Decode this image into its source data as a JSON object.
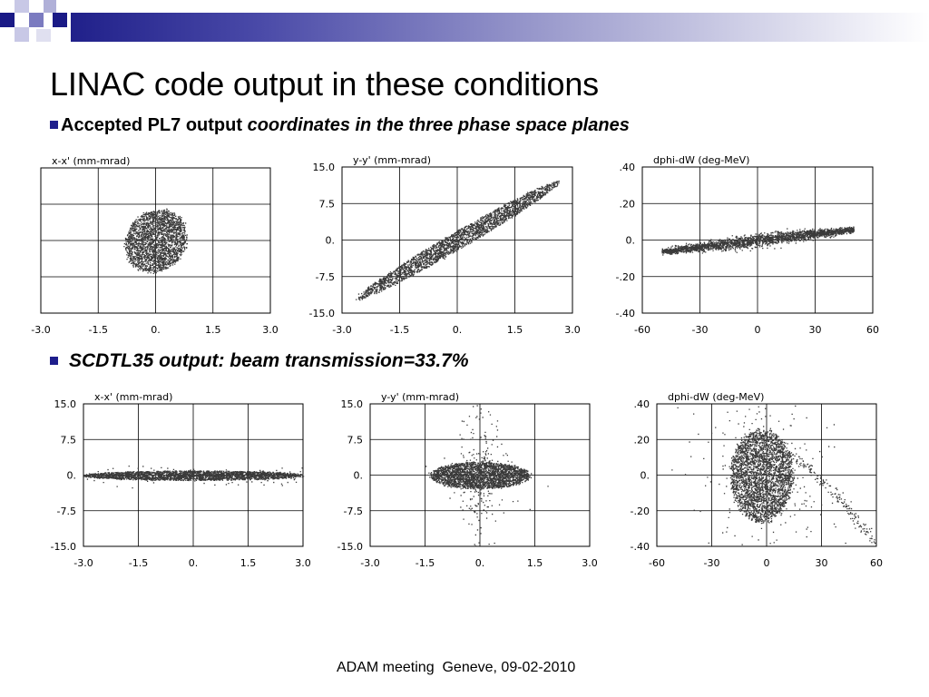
{
  "slide": {
    "title": "LINAC code output in these conditions",
    "bullet1_bold": "Accepted PL7 output ",
    "bullet1_italic": "coordinates in the three phase space planes",
    "bullet2": "SCDTL35 output: beam transmission=33.7%",
    "footer": "ADAM meeting  Geneve, 09-02-2010"
  },
  "colors": {
    "accent": "#1e1e8c",
    "points": "#3a3a3a",
    "grid": "#000000"
  },
  "chart_data": [
    {
      "type": "scatter",
      "title": "x-x' (mm-mrad)",
      "xlim": [
        -3.0,
        3.0
      ],
      "ylim": [
        -15.0,
        15.0
      ],
      "xticks": [
        "-3.0",
        "-1.5",
        "0.",
        "1.5",
        "3.0"
      ],
      "yticks": [
        "",
        "",
        "",
        "",
        ""
      ],
      "grid": true,
      "distribution": {
        "shape": "ellipse",
        "center": [
          0.0,
          0.0
        ],
        "semi_axes": [
          0.8,
          6.5
        ],
        "tilt_deg": -8,
        "density": 2400,
        "halo": 0
      }
    },
    {
      "type": "scatter",
      "title": "y-y' (mm-mrad)",
      "xlim": [
        -3.0,
        3.0
      ],
      "ylim": [
        -15.0,
        15.0
      ],
      "xticks": [
        "-3.0",
        "-1.5",
        "0.",
        "1.5",
        "3.0"
      ],
      "yticks": [
        "-15.0",
        "-7.5",
        "0.",
        "7.5",
        "15.0"
      ],
      "grid": true,
      "distribution": {
        "shape": "ellipse",
        "center": [
          0.0,
          0.0
        ],
        "semi_axes": [
          2.6,
          0.45
        ],
        "tilt_deg": 0,
        "correlation": 4.55,
        "density": 2600,
        "halo": 0
      }
    },
    {
      "type": "scatter",
      "title": "dphi-dW (deg-MeV)",
      "xlim": [
        -60,
        60
      ],
      "ylim": [
        -0.4,
        0.4
      ],
      "xticks": [
        "-60",
        "-30",
        "0",
        "30",
        "60"
      ],
      "yticks": [
        "-.40",
        "-.20",
        "0.",
        ".20",
        ".40"
      ],
      "grid": true,
      "distribution": {
        "shape": "band",
        "center": [
          0.0,
          0.0
        ],
        "semi_axes": [
          50,
          0.03
        ],
        "slope": 0.0012,
        "density": 2600,
        "halo": 0
      }
    },
    {
      "type": "scatter",
      "title": "x-x' (mm-mrad)",
      "xlim": [
        -3.0,
        3.0
      ],
      "ylim": [
        -15.0,
        15.0
      ],
      "xticks": [
        "-3.0",
        "-1.5",
        "0.",
        "1.5",
        "3.0"
      ],
      "yticks": [
        "-15.0",
        "-7.5",
        "0.",
        "7.5",
        "15.0"
      ],
      "grid": true,
      "distribution": {
        "shape": "ellipse",
        "center": [
          0.0,
          0.0
        ],
        "semi_axes": [
          3.0,
          1.0
        ],
        "tilt_deg": 0,
        "density": 2600,
        "halo": 120
      }
    },
    {
      "type": "scatter",
      "title": "y-y' (mm-mrad)",
      "xlim": [
        -3.0,
        3.0
      ],
      "ylim": [
        -15.0,
        15.0
      ],
      "xticks": [
        "-3.0",
        "-1.5",
        "0.",
        "1.5",
        "3.0"
      ],
      "yticks": [
        "-15.0",
        "-7.5",
        "0.",
        "7.5",
        "15.0"
      ],
      "grid": true,
      "distribution": {
        "shape": "ellipse",
        "center": [
          0.0,
          0.0
        ],
        "semi_axes": [
          1.35,
          2.8
        ],
        "tilt_deg": 0,
        "density": 2600,
        "halo": 260
      }
    },
    {
      "type": "scatter",
      "title": "dphi-dW (deg-MeV)",
      "xlim": [
        -60,
        60
      ],
      "ylim": [
        -0.4,
        0.4
      ],
      "xticks": [
        "-60",
        "-30",
        "0",
        "30",
        "60"
      ],
      "yticks": [
        "-.40",
        "-.20",
        "0.",
        ".20",
        ".40"
      ],
      "grid": true,
      "distribution": {
        "shape": "ellipse",
        "center": [
          -3,
          0.0
        ],
        "semi_axes": [
          17,
          0.26
        ],
        "tilt_deg": 0,
        "density": 3000,
        "halo": 200,
        "tail": {
          "from": [
            10,
            0.12
          ],
          "to": [
            60,
            -0.4
          ],
          "count": 180
        }
      }
    }
  ]
}
